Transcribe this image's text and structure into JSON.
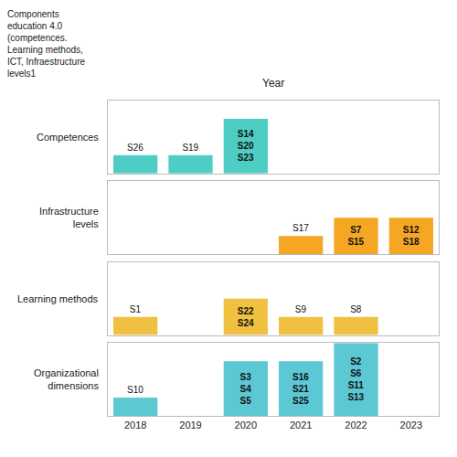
{
  "chart_data": {
    "type": "bar",
    "xlabel": "Year",
    "ylabel": "Components\neducation 4.0\n(competences.\nLearning methods,\nICT, Infraestructure\nlevels1",
    "categories": [
      "2018",
      "2019",
      "2020",
      "2021",
      "2022",
      "2023"
    ],
    "ylim": [
      0,
      4
    ],
    "tick_labels": "x",
    "grid": false,
    "series": [
      {
        "name": "Competences",
        "color": "#4ECDC4",
        "values": [
          1,
          1,
          3,
          null,
          null,
          null
        ],
        "labels": [
          "S26",
          "S19",
          "S14\nS20\nS23",
          null,
          null,
          null
        ]
      },
      {
        "name": "Infrastructure\nlevels",
        "color": "#F5A623",
        "values": [
          null,
          null,
          null,
          1,
          2,
          2
        ],
        "labels": [
          null,
          null,
          null,
          "S17",
          "S7\nS15",
          "S12\nS18"
        ]
      },
      {
        "name": "Learning methods",
        "color": "#F0C040",
        "values": [
          1,
          null,
          2,
          1,
          1,
          null
        ],
        "labels": [
          "S1",
          null,
          "S22\nS24",
          "S9",
          "S8",
          null
        ]
      },
      {
        "name": "Organizational\ndimensions",
        "color": "#5BC8D4",
        "values": [
          1,
          null,
          3,
          3,
          4,
          null
        ],
        "labels": [
          "S10",
          null,
          "S3\nS4\nS5",
          "S16\nS21\nS25",
          "S2\nS6\nS11\nS13",
          null
        ]
      }
    ]
  }
}
